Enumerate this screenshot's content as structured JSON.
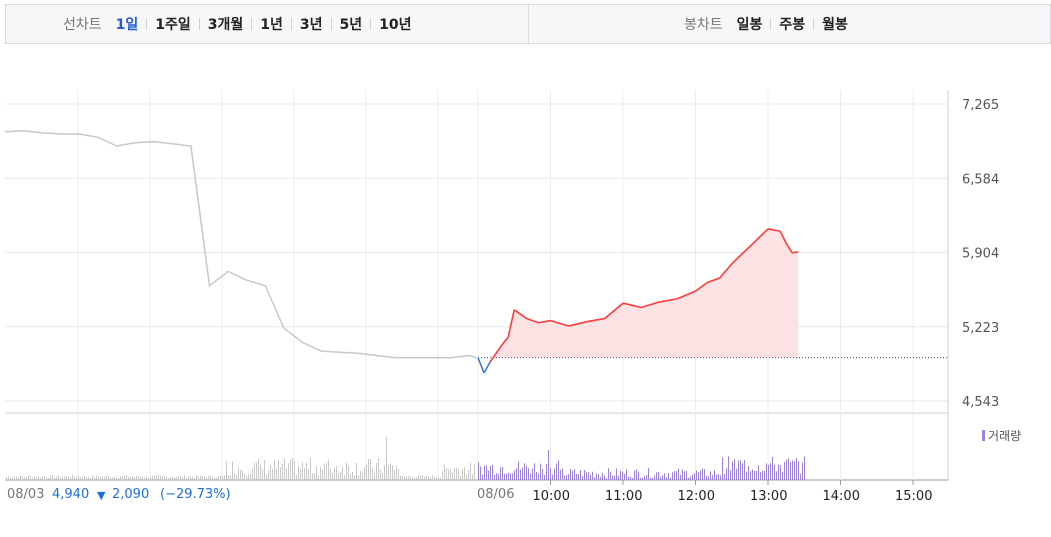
{
  "line_chart_group": {
    "label": "선차트",
    "items": [
      "1일",
      "1주일",
      "3개월",
      "1년",
      "3년",
      "5년",
      "10년"
    ],
    "active": "1일"
  },
  "candle_chart_group": {
    "label": "봉차트",
    "items": [
      "일봉",
      "주봉",
      "월봉"
    ]
  },
  "colors": {
    "up": "#ff3b3b",
    "down": "#3b7be8",
    "up_fill": "#fde2e4",
    "prev_day_line": "#c8c8c8",
    "volume_today": "#9b84d8",
    "volume_prev": "#c8c8c8",
    "accent": "#1f5bd1"
  },
  "footer": {
    "prev_date": "08/03",
    "prev_close": "4,940",
    "change_arrow": "▼",
    "change": "2,090",
    "change_pct": "(−29.73%)",
    "today": "08/06"
  },
  "volume_legend": "거래량",
  "chart_data": {
    "type": "line",
    "y_ticks": [
      "7,265",
      "6,584",
      "5,904",
      "5,223",
      "4,543"
    ],
    "y_tick_values": [
      7265,
      6584,
      5904,
      5223,
      4543
    ],
    "ylim": [
      4543,
      7265
    ],
    "x_ticks": [
      "10:00",
      "11:00",
      "12:00",
      "13:00",
      "14:00",
      "15:00"
    ],
    "grid": true,
    "baseline": 4940,
    "series": [
      {
        "x": [
          "08/03 09:00",
          "08/03 09:15",
          "08/03 09:30",
          "08/03 09:45",
          "08/03 10:00",
          "08/03 10:15",
          "08/03 10:30",
          "08/03 10:45",
          "08/03 11:00",
          "08/03 11:15",
          "08/03 11:30",
          "08/03 11:45",
          "08/03 12:00",
          "08/03 12:15",
          "08/03 12:30",
          "08/03 12:45",
          "08/03 13:00",
          "08/03 13:15",
          "08/03 13:30",
          "08/03 13:45",
          "08/03 14:00",
          "08/03 14:15",
          "08/03 14:30",
          "08/03 14:45",
          "08/03 15:00",
          "08/03 15:15",
          "08/03 15:20"
        ],
        "values": [
          7010,
          7020,
          7000,
          6990,
          6990,
          6960,
          6880,
          6910,
          6920,
          6900,
          6880,
          5600,
          5730,
          5650,
          5600,
          5210,
          5080,
          5000,
          4990,
          4980,
          4960,
          4940,
          4940,
          4940,
          4940,
          4960,
          4940
        ]
      },
      {
        "x": [
          "09:00",
          "09:05",
          "09:10",
          "09:15",
          "09:20",
          "09:25",
          "09:30",
          "09:40",
          "09:50",
          "10:00",
          "10:15",
          "10:30",
          "10:45",
          "11:00",
          "11:15",
          "11:30",
          "11:45",
          "12:00",
          "12:10",
          "12:20",
          "12:30",
          "12:45",
          "13:00",
          "13:10",
          "13:15",
          "13:20",
          "13:25"
        ],
        "values": [
          4940,
          4800,
          4900,
          4980,
          5060,
          5130,
          5380,
          5300,
          5260,
          5280,
          5230,
          5270,
          5300,
          5440,
          5400,
          5450,
          5480,
          5550,
          5630,
          5670,
          5800,
          5960,
          6120,
          6100,
          5990,
          5900,
          5910
        ]
      }
    ]
  }
}
